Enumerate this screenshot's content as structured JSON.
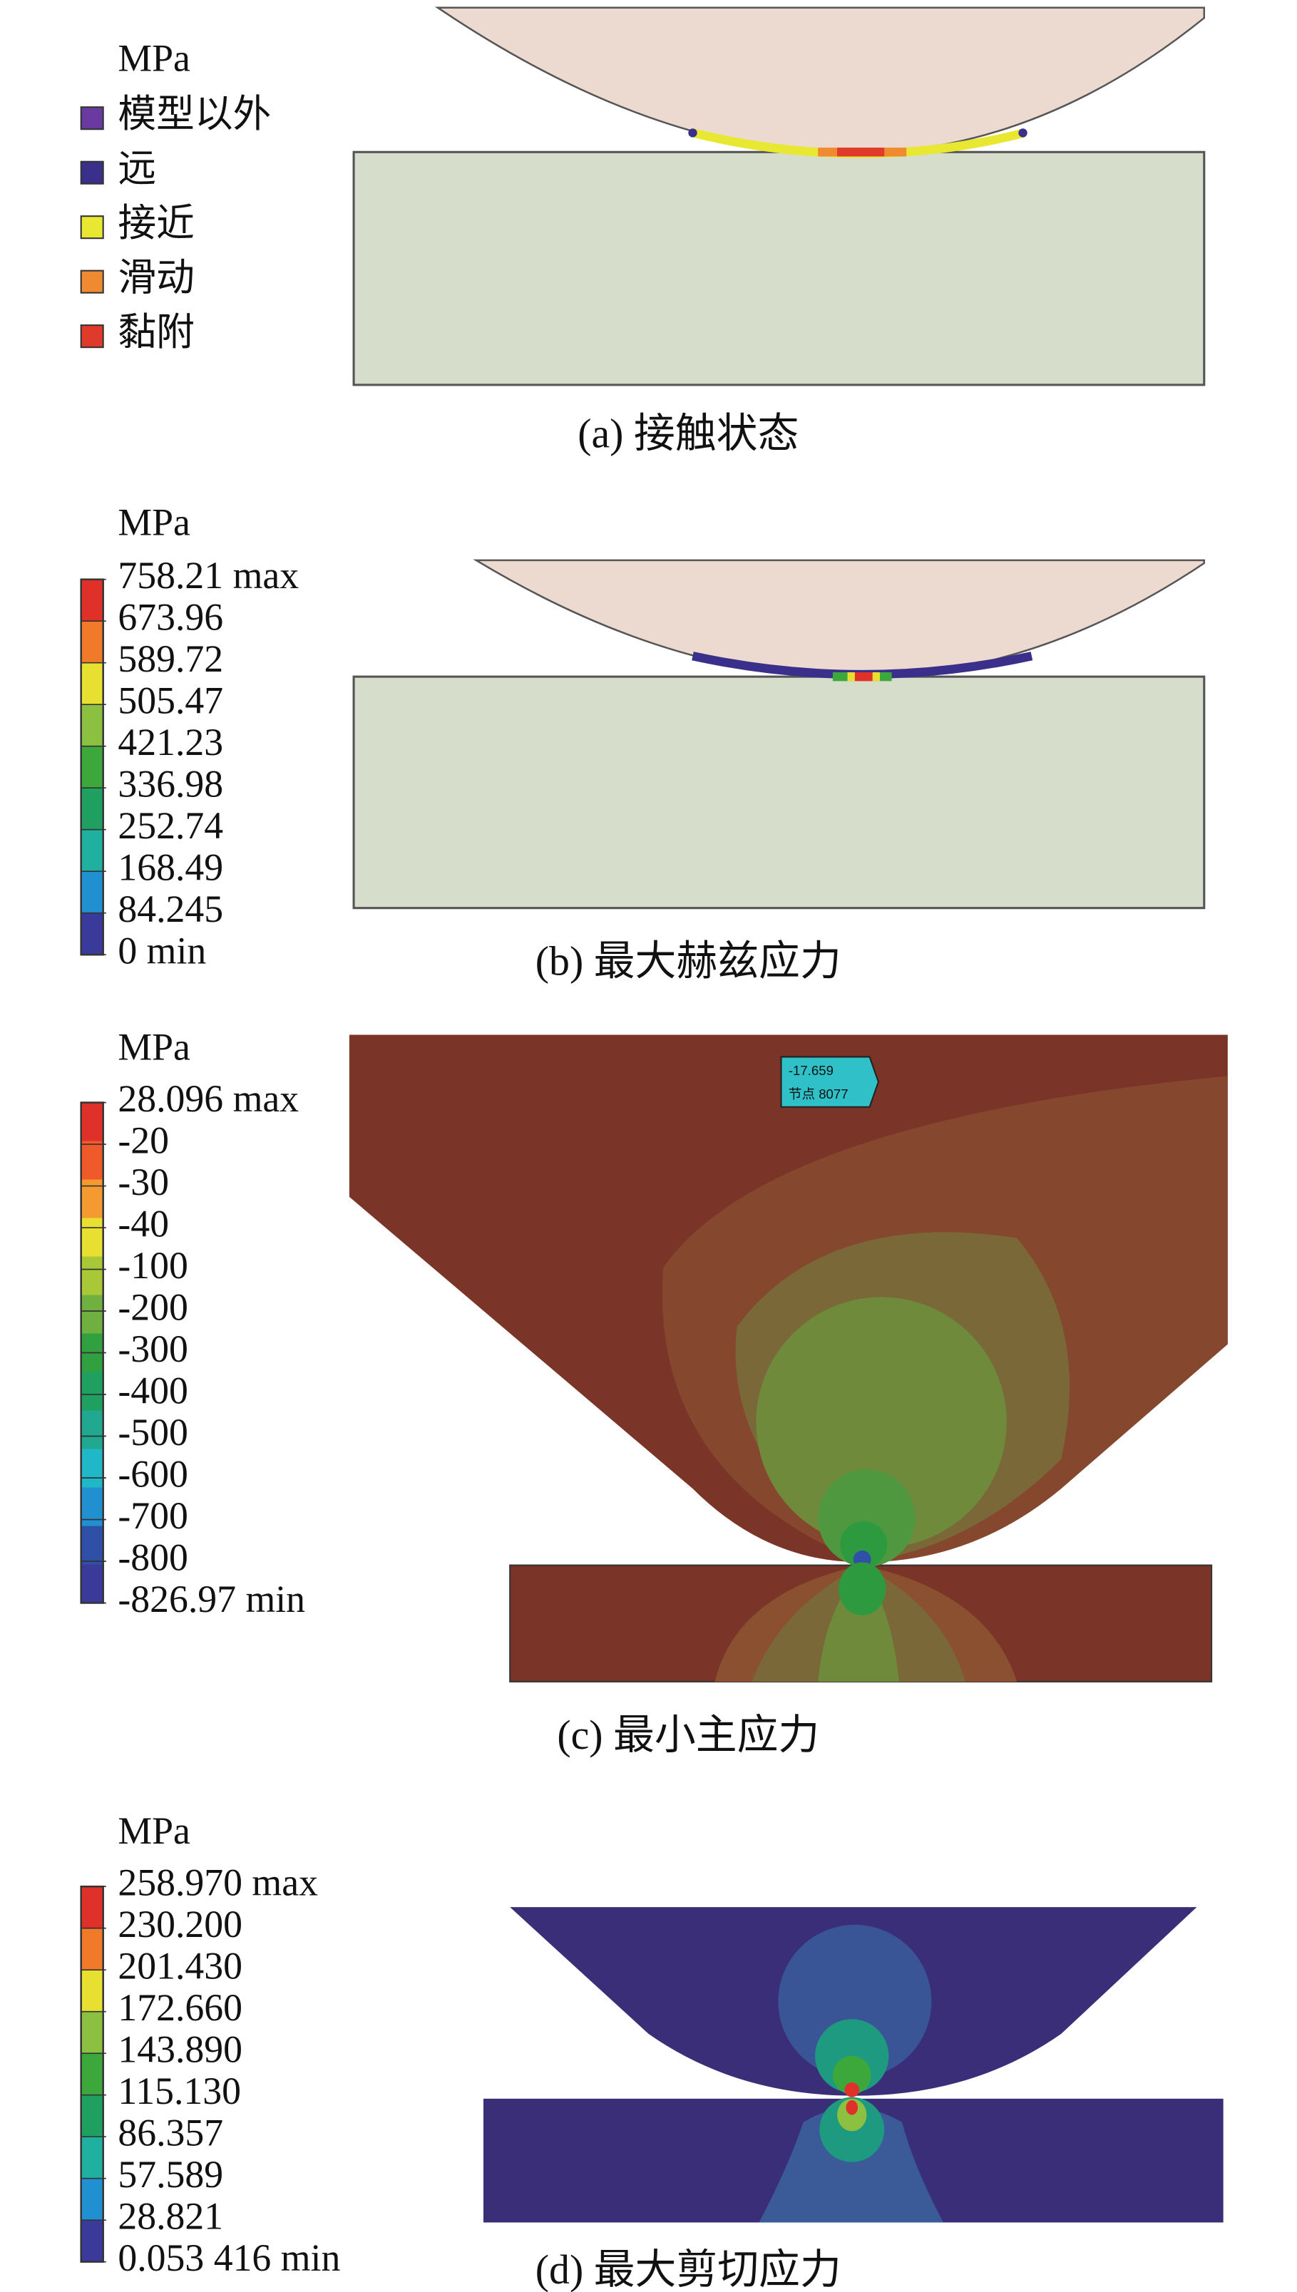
{
  "panels": [
    {
      "unit": "MPa",
      "caption": "(a) 接触状态",
      "legend": [
        {
          "label": "模型以外",
          "color": "#6a3aa0"
        },
        {
          "label": "远",
          "color": "#3a2f8a"
        },
        {
          "label": "接近",
          "color": "#e8e832"
        },
        {
          "label": "滑动",
          "color": "#f08a30"
        },
        {
          "label": "黏附",
          "color": "#e03a2a"
        }
      ]
    },
    {
      "unit": "MPa",
      "caption": "(b) 最大赫兹应力",
      "labels": [
        "758.21 max",
        "673.96",
        "589.72",
        "505.47",
        "421.23",
        "336.98",
        "252.74",
        "168.49",
        "84.245",
        "0 min"
      ],
      "colors": [
        "#e0302a",
        "#f07a2a",
        "#e8e030",
        "#8cc040",
        "#3ca83c",
        "#20a060",
        "#20b0a0",
        "#2090d0",
        "#3a3a9a"
      ]
    },
    {
      "unit": "MPa",
      "caption": "(c) 最小主应力",
      "labels": [
        "28.096 max",
        "-20",
        "-30",
        "-40",
        "-100",
        "-200",
        "-300",
        "-400",
        "-500",
        "-600",
        "-700",
        "-800",
        "-826.97 min"
      ],
      "colors": [
        "#e0302a",
        "#f05a2a",
        "#f59a30",
        "#e8e030",
        "#a8c838",
        "#70b040",
        "#30a040",
        "#20a060",
        "#20a890",
        "#20b8c8",
        "#2090d0",
        "#3050a8",
        "#3a3a9a"
      ],
      "probe": {
        "value": "-17.659",
        "node": "节点 8077"
      }
    },
    {
      "unit": "MPa",
      "caption": "(d) 最大剪切应力",
      "labels": [
        "258.970 max",
        "230.200",
        "201.430",
        "172.660",
        "143.890",
        "115.130",
        "86.357",
        "57.589",
        "28.821",
        "0.053 416 min"
      ],
      "colors": [
        "#e0302a",
        "#f07a2a",
        "#e8e030",
        "#8cc040",
        "#3ca83c",
        "#20a060",
        "#20b0a0",
        "#2090d0",
        "#3a3a9a"
      ]
    }
  ]
}
